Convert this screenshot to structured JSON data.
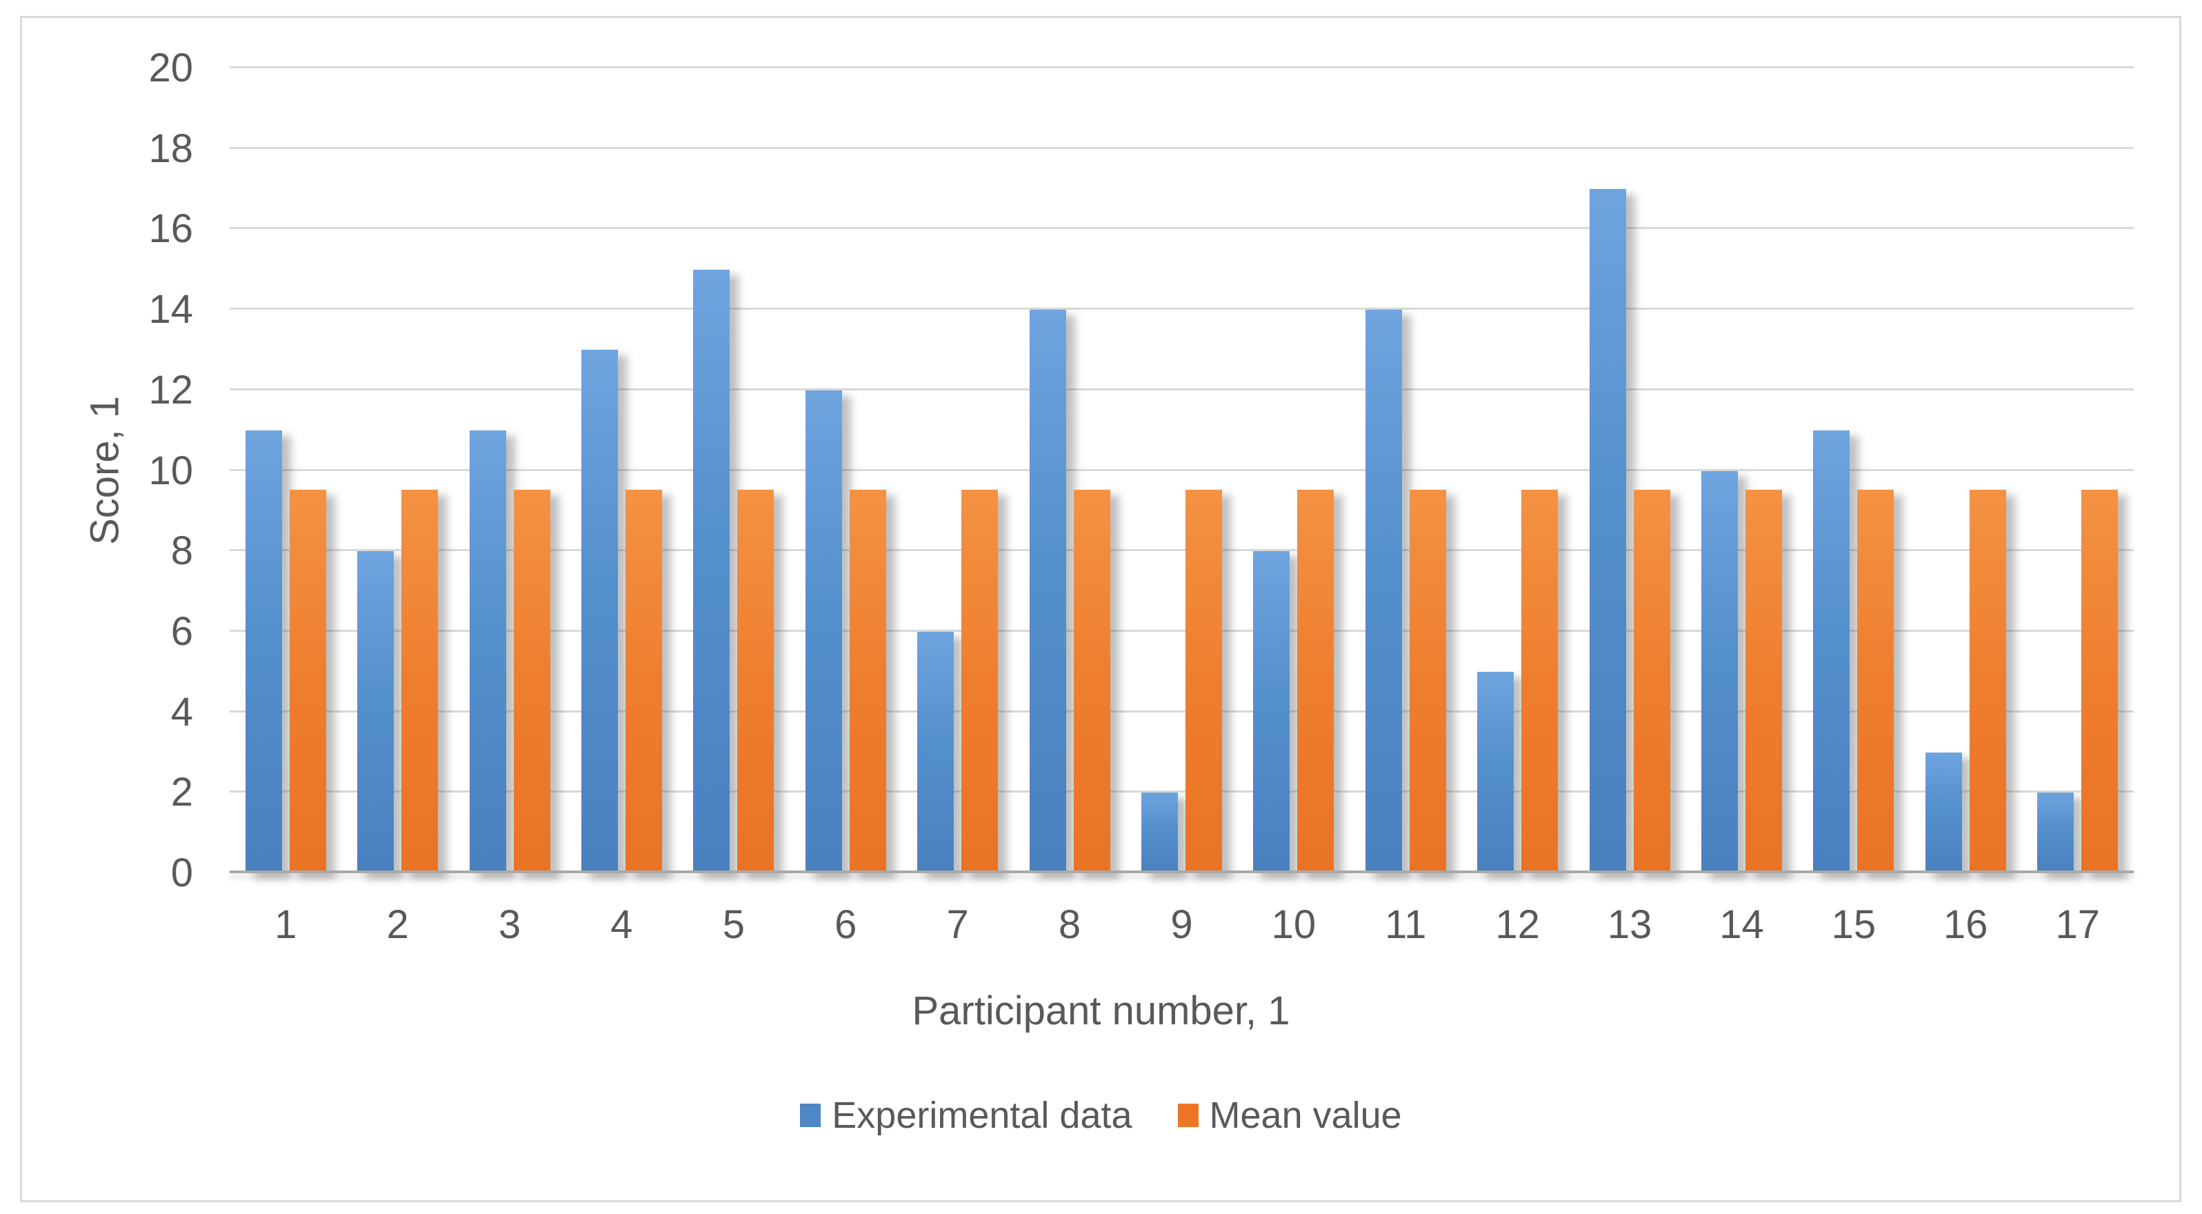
{
  "figure": {
    "y_axis_title": "Score, 1",
    "x_axis_title": "Participant number, 1"
  },
  "legend": {
    "items": [
      {
        "label": "Experimental data",
        "color": "#4e86c6"
      },
      {
        "label": "Mean value",
        "color": "#ec7626"
      }
    ]
  },
  "colors": {
    "experimental_blue": "#4e86c6",
    "mean_orange": "#ec7626",
    "gridline": "#d9d9d9",
    "axis_line": "#a9a9a9",
    "text": "#595959",
    "frame_border": "#d9d9d9",
    "background": "#ffffff"
  },
  "chart_data": {
    "type": "bar",
    "title": "",
    "categories": [
      "1",
      "2",
      "3",
      "4",
      "5",
      "6",
      "7",
      "8",
      "9",
      "10",
      "11",
      "12",
      "13",
      "14",
      "15",
      "16",
      "17"
    ],
    "series": [
      {
        "name": "Experimental data",
        "color": "#4e86c6",
        "values": [
          11,
          8,
          11,
          13,
          15,
          12,
          6,
          14,
          2,
          8,
          14,
          5,
          17,
          10,
          11,
          3,
          2
        ]
      },
      {
        "name": "Mean value",
        "color": "#ec7626",
        "values": [
          9.53,
          9.53,
          9.53,
          9.53,
          9.53,
          9.53,
          9.53,
          9.53,
          9.53,
          9.53,
          9.53,
          9.53,
          9.53,
          9.53,
          9.53,
          9.53,
          9.53
        ]
      }
    ],
    "xlabel": "Participant number, 1",
    "ylabel": "Score, 1",
    "ylim": [
      0,
      20
    ],
    "yticks": [
      0,
      2,
      4,
      6,
      8,
      10,
      12,
      14,
      16,
      18,
      20
    ],
    "grid": true,
    "legend_position": "bottom"
  }
}
